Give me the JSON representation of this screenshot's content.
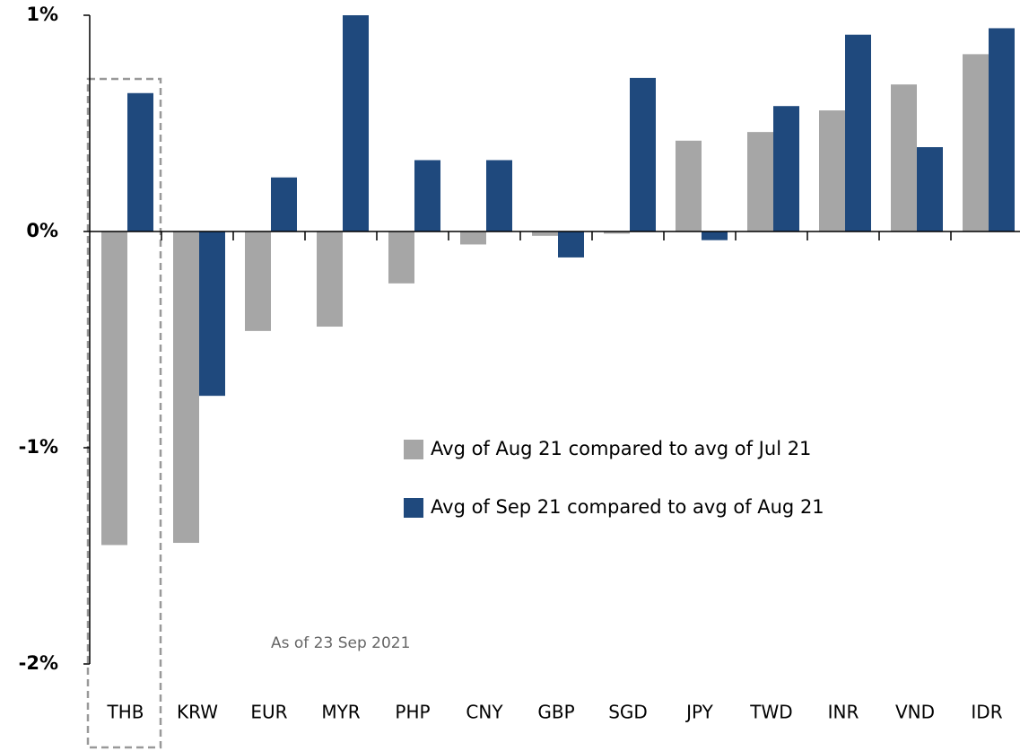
{
  "chart_data": {
    "type": "bar",
    "categories": [
      "THB",
      "KRW",
      "EUR",
      "MYR",
      "PHP",
      "CNY",
      "GBP",
      "SGD",
      "JPY",
      "TWD",
      "INR",
      "VND",
      "IDR"
    ],
    "series": [
      {
        "name": "Avg of Aug 21 compared to avg of Jul 21",
        "color": "#a6a6a6",
        "values": [
          -1.45,
          -1.44,
          -0.46,
          -0.44,
          -0.24,
          -0.06,
          -0.02,
          -0.01,
          0.42,
          0.46,
          0.56,
          0.68,
          0.82
        ]
      },
      {
        "name": "Avg of Sep 21 compared to avg of Aug 21",
        "color": "#1f497d",
        "values": [
          0.64,
          -0.76,
          0.25,
          1.0,
          0.33,
          0.33,
          -0.12,
          0.71,
          -0.04,
          0.58,
          0.91,
          0.39,
          0.94
        ]
      }
    ],
    "ylim": [
      -2,
      1
    ],
    "yticks": [
      {
        "value": 1,
        "label": "1%"
      },
      {
        "value": 0,
        "label": "0%"
      },
      {
        "value": -1,
        "label": "-1%"
      },
      {
        "value": -2,
        "label": "-2%"
      }
    ],
    "annotation": "As of 23 Sep 2021"
  }
}
